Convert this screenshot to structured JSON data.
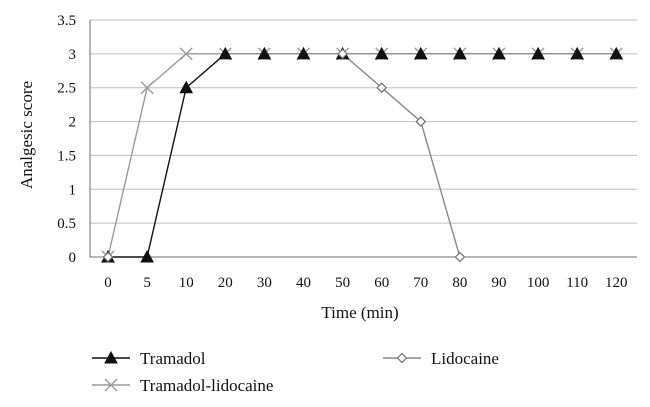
{
  "chart_data": {
    "type": "line",
    "xlabel": "Time (min)",
    "ylabel": "Analgesic score",
    "categories": [
      "0",
      "5",
      "10",
      "20",
      "30",
      "40",
      "50",
      "60",
      "70",
      "80",
      "90",
      "100",
      "110",
      "120"
    ],
    "ylim": [
      0,
      3.5
    ],
    "yticks": [
      "0",
      "0.5",
      "1",
      "1.5",
      "2",
      "2.5",
      "3",
      "3.5"
    ],
    "grid": "horizontal",
    "legend_position": "bottom",
    "series": [
      {
        "name": "Tramadol",
        "marker": "filled-triangle",
        "color": "#111111",
        "values": [
          0,
          0,
          2.5,
          3,
          3,
          3,
          3,
          3,
          3,
          3,
          3,
          3,
          3,
          3
        ]
      },
      {
        "name": "Lidocaine",
        "marker": "open-diamond",
        "color": "#8a8a8a",
        "values": [
          0,
          null,
          null,
          null,
          null,
          null,
          3,
          2.5,
          2,
          0,
          null,
          null,
          null,
          null
        ]
      },
      {
        "name": "Tramadol-lidocaine",
        "marker": "x-cross",
        "color": "#9a9a9a",
        "values": [
          0,
          2.5,
          3,
          3,
          3,
          3,
          3,
          3,
          3,
          3,
          3,
          3,
          3,
          3
        ]
      }
    ]
  }
}
